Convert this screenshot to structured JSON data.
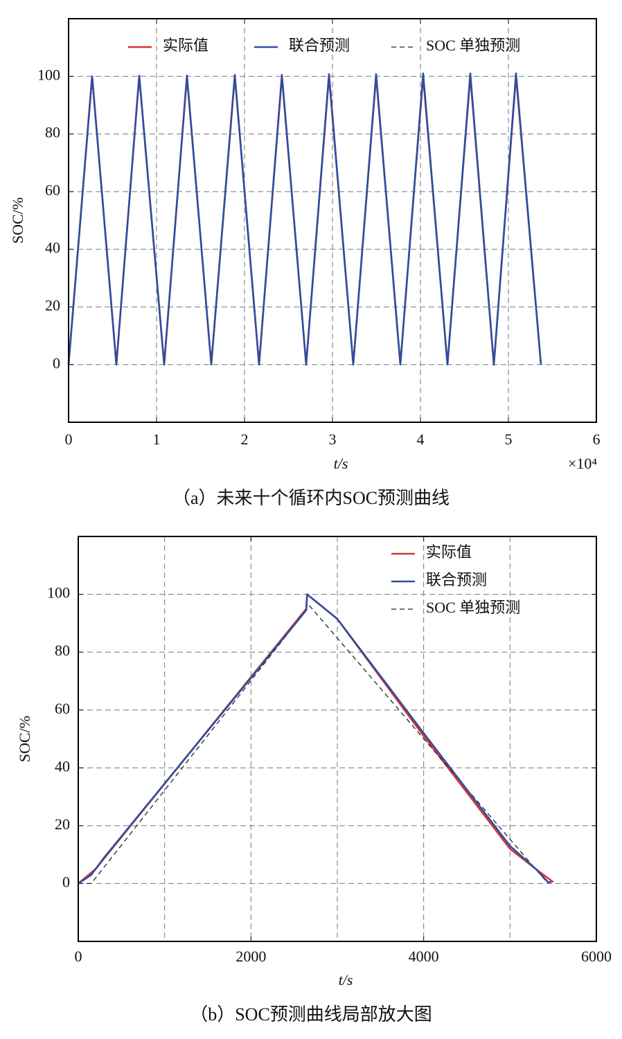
{
  "chart_data": [
    {
      "type": "line",
      "caption": "（a）未来十个循环内SOC预测曲线",
      "xlabel": "t/s",
      "ylabel": "SOC/%",
      "x_multiplier": "×10⁴",
      "xlim": [
        0,
        6
      ],
      "ylim": [
        -20,
        120
      ],
      "xticks": [
        0,
        1,
        2,
        3,
        4,
        5,
        6
      ],
      "yticks": [
        0,
        20,
        40,
        60,
        80,
        100
      ],
      "xgrid": [
        1,
        2,
        3,
        4,
        5
      ],
      "grid": true,
      "legend": "top",
      "series": [
        {
          "name": "实际值",
          "color": "#e03030",
          "style": "solid",
          "x": [
            0,
            0.268,
            0.543,
            0.803,
            1.087,
            1.346,
            1.622,
            1.89,
            2.165,
            2.425,
            2.701,
            2.961,
            3.236,
            3.496,
            3.772,
            4.031,
            4.307,
            4.567,
            4.835,
            5.087,
            5.37
          ],
          "values": [
            0,
            100,
            0,
            100,
            0,
            100,
            0,
            100,
            0,
            100,
            0,
            100,
            0,
            100,
            0,
            100,
            0,
            100,
            0,
            100,
            0
          ]
        },
        {
          "name": "SOC 单独预测",
          "color": "#222222",
          "style": "dashed",
          "x": [
            0,
            0.268,
            0.543,
            0.803,
            1.087,
            1.346,
            1.622,
            1.89,
            2.165,
            2.425,
            2.701,
            2.961,
            3.236,
            3.496,
            3.772,
            4.031,
            4.307,
            4.567,
            4.835,
            5.087,
            5.37
          ],
          "values": [
            0,
            99,
            0,
            99,
            0,
            99,
            0,
            99,
            0,
            99,
            0,
            99,
            0,
            99,
            0,
            99,
            0,
            99,
            0,
            99,
            0
          ]
        },
        {
          "name": "联合预测",
          "color": "#2e4e9e",
          "style": "solid",
          "x": [
            0,
            0.268,
            0.543,
            0.803,
            1.087,
            1.346,
            1.622,
            1.89,
            2.165,
            2.425,
            2.701,
            2.961,
            3.236,
            3.496,
            3.772,
            4.031,
            4.307,
            4.567,
            4.835,
            5.087,
            5.37
          ],
          "values": [
            0,
            100,
            0,
            100.3,
            0,
            100.3,
            0,
            100.5,
            0,
            100.5,
            0,
            100.8,
            0,
            100.8,
            0,
            101,
            0,
            101,
            0,
            101,
            0
          ]
        }
      ]
    },
    {
      "type": "line",
      "caption": "（b）SOC预测曲线局部放大图",
      "xlabel": "t/s",
      "ylabel": "SOC/%",
      "xlim": [
        0,
        6000
      ],
      "ylim": [
        -20,
        120
      ],
      "xticks": [
        0,
        2000,
        4000,
        6000
      ],
      "yticks": [
        0,
        20,
        40,
        60,
        80,
        100
      ],
      "xgrid": [
        1000,
        2000,
        3000,
        4000,
        5000
      ],
      "grid": true,
      "legend": "upper right",
      "series": [
        {
          "name": "实际值",
          "color": "#e03030",
          "style": "solid",
          "x": [
            0,
            200,
            2640,
            2650,
            3000,
            4000,
            5000,
            5300,
            5500
          ],
          "values": [
            0,
            5,
            95,
            100,
            91.5,
            51,
            12,
            5,
            0.5
          ]
        },
        {
          "name": "SOC 单独预测",
          "color": "#222222",
          "style": "dashed",
          "x": [
            0,
            150,
            2680,
            5440
          ],
          "values": [
            0,
            0,
            96,
            0
          ]
        },
        {
          "name": "联合预测",
          "color": "#2e4e9e",
          "style": "solid",
          "x": [
            0,
            150,
            300,
            2640,
            2650,
            3000,
            4000,
            5000,
            5300,
            5440,
            5480
          ],
          "values": [
            0,
            3,
            9,
            94.5,
            100,
            91.5,
            52,
            13,
            5,
            0.5,
            0.5
          ]
        }
      ]
    }
  ]
}
